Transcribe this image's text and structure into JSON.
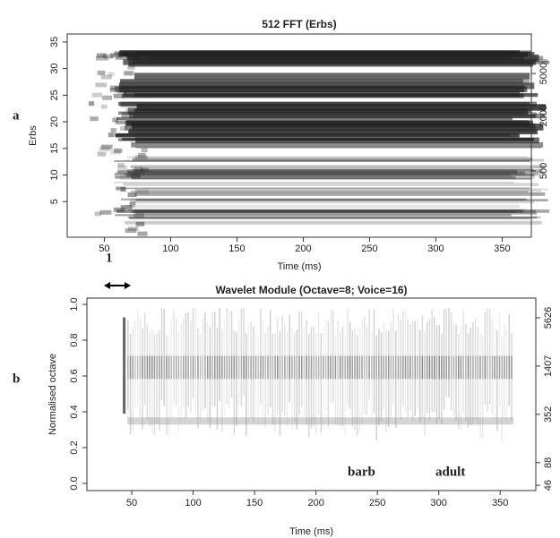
{
  "chart_data": [
    {
      "type": "spectrogram",
      "title": "512 FFT (Erbs)",
      "y_label": "Erbs",
      "x_label": "Time (ms)",
      "xlim": [
        22,
        372
      ],
      "xticks": [
        50,
        100,
        150,
        200,
        250,
        300,
        350
      ],
      "ylim": [
        -1.7,
        36.5
      ],
      "yticks": [
        5,
        10,
        15,
        20,
        25,
        30,
        35
      ],
      "y2scale": "erb",
      "y2ticks": [
        500,
        2000,
        5000
      ],
      "annotations": [
        "a",
        "1"
      ]
    },
    {
      "type": "scalogram",
      "title": "Wavelet Module (Octave=8; Voice=16)",
      "y_label": "Normalised octave",
      "x_label": "Time (ms)",
      "xlim": [
        13.5,
        379
      ],
      "xticks": [
        50,
        100,
        150,
        200,
        250,
        300,
        350
      ],
      "ylim": [
        -0.04,
        1.035
      ],
      "yticks": [
        {
          "value": 0,
          "label": "0.0"
        },
        {
          "value": 0.2,
          "label": "0.2"
        },
        {
          "value": 0.4,
          "label": "0.4"
        },
        {
          "value": 0.6,
          "label": "0.6"
        },
        {
          "value": 0.8,
          "label": "0.8"
        },
        {
          "value": 1,
          "label": "1.0"
        }
      ],
      "y2log": true,
      "y2lim": [
        39.5,
        9900
      ],
      "y2ticks": [
        46,
        88,
        352,
        1407,
        5626
      ],
      "annotations": [
        "b",
        "barb",
        "adult"
      ]
    }
  ]
}
